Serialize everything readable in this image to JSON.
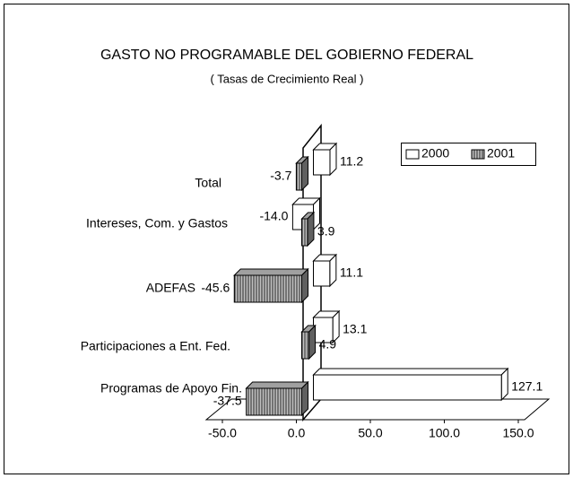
{
  "chart_data": {
    "type": "bar3d_horizontal",
    "title": "GASTO NO PROGRAMABLE DEL GOBIERNO FEDERAL",
    "subtitle": "( Tasas de Crecimiento Real )",
    "categories": [
      "Total",
      "Intereses, Com. y Gastos",
      "ADEFAS",
      "Participaciones a Ent. Fed.",
      "Programas de Apoyo Fin."
    ],
    "series": [
      {
        "name": "2000",
        "color": "#ffffff",
        "values": [
          11.2,
          -14.0,
          11.1,
          13.1,
          127.1
        ],
        "value_labels": [
          "11.2",
          "-14.0",
          "11.1",
          "13.1",
          "127.1"
        ]
      },
      {
        "name": "2001",
        "color": "#808080",
        "values": [
          -3.7,
          3.9,
          -45.6,
          4.9,
          -37.5
        ],
        "value_labels": [
          "-3.7",
          "3.9",
          "-45.6",
          "4.9",
          "-37.5"
        ]
      }
    ],
    "xlim": [
      -50,
      150
    ],
    "xticks": [
      {
        "value": -50,
        "label": "-50.0"
      },
      {
        "value": 0,
        "label": "0.0"
      },
      {
        "value": 50,
        "label": "50.0"
      },
      {
        "value": 100,
        "label": "100.0"
      },
      {
        "value": 150,
        "label": "150.0"
      }
    ],
    "legend": "upper right"
  }
}
